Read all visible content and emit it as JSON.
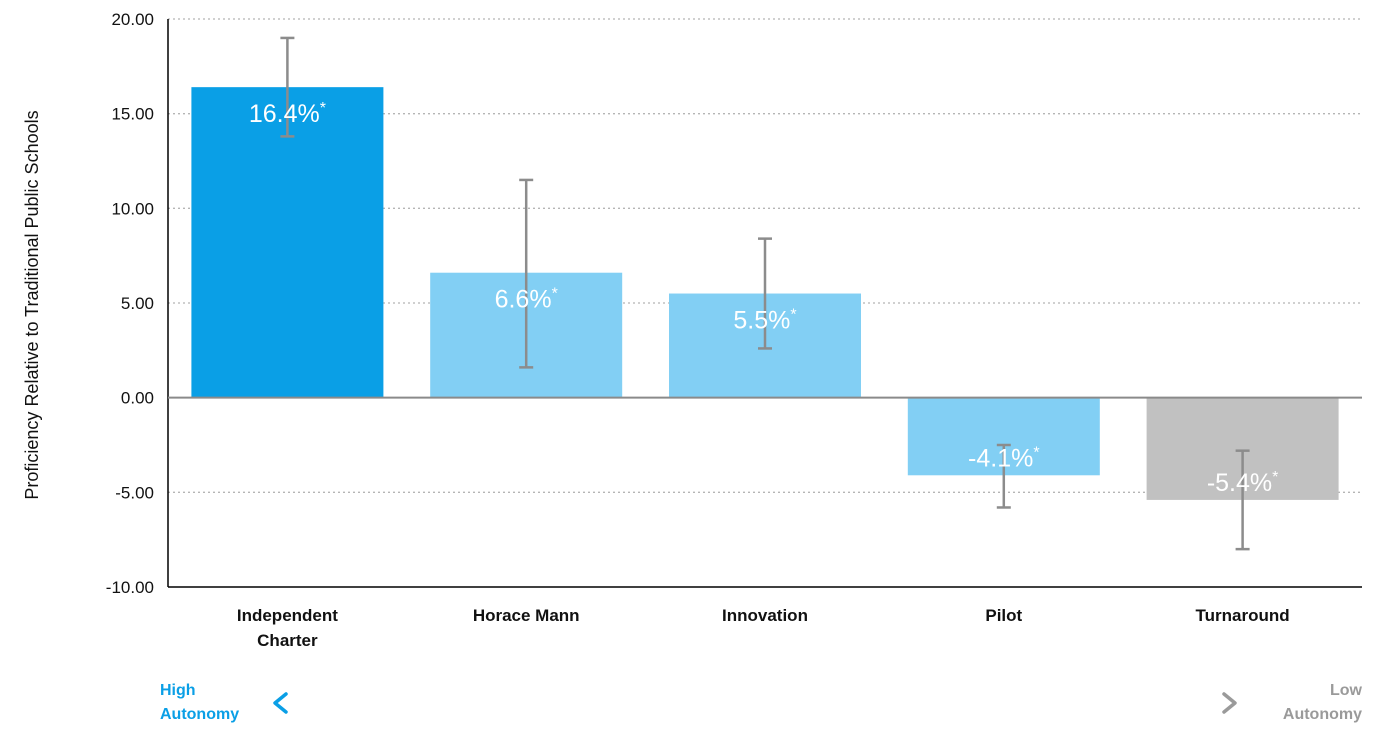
{
  "chart_data": {
    "type": "bar",
    "ylabel": "Proficiency Relative to Traditional Public Schools",
    "xlabel": "",
    "title": "",
    "ylim": [
      -10,
      20
    ],
    "yticks": [
      20,
      15,
      10,
      5,
      0,
      -5,
      -10
    ],
    "ytick_labels": [
      "20.00",
      "15.00",
      "10.00",
      "5.00",
      "0.00",
      "-5.00",
      "-10.00"
    ],
    "grid": "horizontal dotted",
    "categories": [
      {
        "lines": [
          "Independent",
          "Charter"
        ]
      },
      {
        "lines": [
          "Horace Mann"
        ]
      },
      {
        "lines": [
          "Innovation"
        ]
      },
      {
        "lines": [
          "Pilot"
        ]
      },
      {
        "lines": [
          "Turnaround"
        ]
      }
    ],
    "values": [
      16.4,
      6.6,
      5.5,
      -4.1,
      -5.4
    ],
    "error_low": [
      13.8,
      1.6,
      2.6,
      -5.8,
      -8.0
    ],
    "error_high": [
      19.0,
      11.5,
      8.4,
      -2.5,
      -2.8
    ],
    "data_labels": [
      "16.4%",
      "6.6%",
      "5.5%",
      "-4.1%",
      "-5.4%"
    ],
    "label_suffix": "*",
    "bar_colors": [
      "#0a9fe6",
      "#82cff4",
      "#82cff4",
      "#82cff4",
      "#c1c1c1"
    ],
    "autonomy_scale": {
      "left_label": [
        "High",
        "Autonomy"
      ],
      "right_label": [
        "Low",
        "Autonomy"
      ],
      "left_color": "#0a9fe6",
      "right_color": "#9a9a9a"
    }
  }
}
